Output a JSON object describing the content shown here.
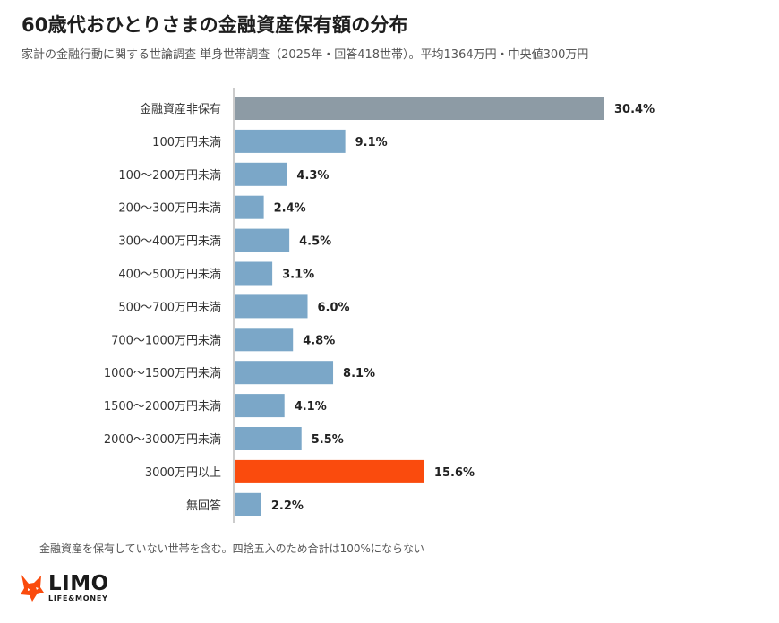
{
  "title": "60歳代おひとりさまの金融資産保有額の分布",
  "subtitle": "家計の金融行動に関する世論調査 単身世帯調査（2025年・回答418世帯）。平均1364万円・中央値300万円",
  "note": "金融資産を保有していない世帯を含む。四捨五入のため合計は100%にならない",
  "logo": {
    "main": "LIMO",
    "sub": "LIFE&MONEY",
    "icon": "fox-head-icon"
  },
  "colors": {
    "default_bar": "#7ba7c8",
    "none_bar": "#8d9ba5",
    "highlight_bar": "#fa4b0d",
    "axis": "#bbbbbb"
  },
  "chart_data": {
    "type": "bar",
    "orientation": "horizontal",
    "value_suffix": "%",
    "categories": [
      "金融資産非保有",
      "100万円未満",
      "100～200万円未満",
      "200～300万円未満",
      "300～400万円未満",
      "400～500万円未満",
      "500～700万円未満",
      "700～1000万円未満",
      "1000～1500万円未満",
      "1500～2000万円未満",
      "2000～3000万円未満",
      "3000万円以上",
      "無回答"
    ],
    "values": [
      30.4,
      9.1,
      4.3,
      2.4,
      4.5,
      3.1,
      6.0,
      4.8,
      8.1,
      4.1,
      5.5,
      15.6,
      2.2
    ],
    "bar_colors": [
      "#8d9ba5",
      "#7ba7c8",
      "#7ba7c8",
      "#7ba7c8",
      "#7ba7c8",
      "#7ba7c8",
      "#7ba7c8",
      "#7ba7c8",
      "#7ba7c8",
      "#7ba7c8",
      "#7ba7c8",
      "#fa4b0d",
      "#7ba7c8"
    ],
    "xlim": [
      0,
      30.4
    ],
    "grid": false,
    "legend": "none"
  }
}
